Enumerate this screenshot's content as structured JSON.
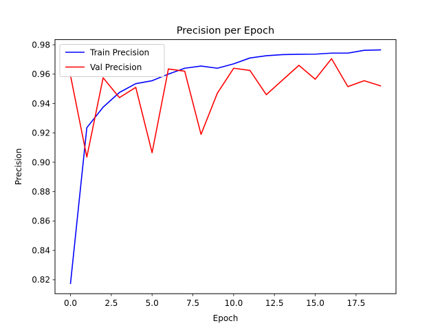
{
  "chart_data": {
    "type": "line",
    "title": "Precision per Epoch",
    "xlabel": "Epoch",
    "ylabel": "Precision",
    "xlim": [
      -0.95,
      19.95
    ],
    "ylim": [
      0.8105,
      0.9835
    ],
    "xticks": [
      0,
      2.5,
      5,
      7.5,
      10,
      12.5,
      15,
      17.5
    ],
    "xtick_labels": [
      "0.0",
      "2.5",
      "5.0",
      "7.5",
      "10.0",
      "12.5",
      "15.0",
      "17.5"
    ],
    "yticks": [
      0.82,
      0.84,
      0.86,
      0.88,
      0.9,
      0.92,
      0.94,
      0.96,
      0.98
    ],
    "ytick_labels": [
      "0.82",
      "0.84",
      "0.86",
      "0.88",
      "0.90",
      "0.92",
      "0.94",
      "0.96",
      "0.98"
    ],
    "grid": false,
    "legend_position": "top-left",
    "x": [
      0,
      1,
      2,
      3,
      4,
      5,
      6,
      7,
      8,
      9,
      10,
      11,
      12,
      13,
      14,
      15,
      16,
      17,
      18,
      19
    ],
    "series": [
      {
        "name": "Train Precision",
        "color": "#0000ff",
        "values": [
          0.8175,
          0.9235,
          0.9375,
          0.9475,
          0.9535,
          0.9555,
          0.96,
          0.964,
          0.9655,
          0.964,
          0.967,
          0.971,
          0.9725,
          0.9733,
          0.9735,
          0.9736,
          0.9743,
          0.9743,
          0.9762,
          0.9765
        ]
      },
      {
        "name": "Val Precision",
        "color": "#ff0000",
        "values": [
          0.959,
          0.9035,
          0.9575,
          0.944,
          0.951,
          0.9065,
          0.9635,
          0.962,
          0.919,
          0.947,
          0.964,
          0.9625,
          0.946,
          0.956,
          0.966,
          0.9565,
          0.9705,
          0.9515,
          0.9555,
          0.952
        ]
      }
    ]
  }
}
